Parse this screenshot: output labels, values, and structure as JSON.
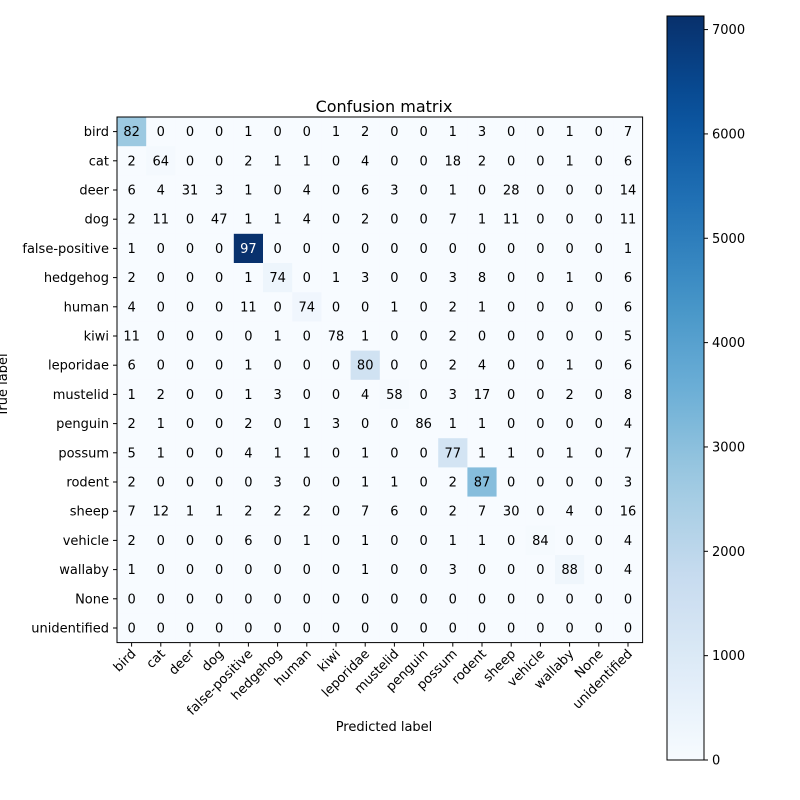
{
  "chart_data": {
    "type": "heatmap",
    "title": "Confusion matrix",
    "xlabel": "Predicted label",
    "ylabel": "True label",
    "labels": [
      "bird",
      "cat",
      "deer",
      "dog",
      "false-positive",
      "hedgehog",
      "human",
      "kiwi",
      "leporidae",
      "mustelid",
      "penguin",
      "possum",
      "rodent",
      "sheep",
      "vehicle",
      "wallaby",
      "None",
      "unidentified"
    ],
    "matrix": [
      [
        82,
        0,
        0,
        0,
        1,
        0,
        0,
        1,
        2,
        0,
        0,
        1,
        3,
        0,
        0,
        1,
        0,
        7
      ],
      [
        2,
        64,
        0,
        0,
        2,
        1,
        1,
        0,
        4,
        0,
        0,
        18,
        2,
        0,
        0,
        1,
        0,
        6
      ],
      [
        6,
        4,
        31,
        3,
        1,
        0,
        4,
        0,
        6,
        3,
        0,
        1,
        0,
        28,
        0,
        0,
        0,
        14
      ],
      [
        2,
        11,
        0,
        47,
        1,
        1,
        4,
        0,
        2,
        0,
        0,
        7,
        1,
        11,
        0,
        0,
        0,
        11
      ],
      [
        1,
        0,
        0,
        0,
        97,
        0,
        0,
        0,
        0,
        0,
        0,
        0,
        0,
        0,
        0,
        0,
        0,
        1
      ],
      [
        2,
        0,
        0,
        0,
        1,
        74,
        0,
        1,
        3,
        0,
        0,
        3,
        8,
        0,
        0,
        1,
        0,
        6
      ],
      [
        4,
        0,
        0,
        0,
        11,
        0,
        74,
        0,
        0,
        1,
        0,
        2,
        1,
        0,
        0,
        0,
        0,
        6
      ],
      [
        11,
        0,
        0,
        0,
        0,
        1,
        0,
        78,
        1,
        0,
        0,
        2,
        0,
        0,
        0,
        0,
        0,
        5
      ],
      [
        6,
        0,
        0,
        0,
        1,
        0,
        0,
        0,
        80,
        0,
        0,
        2,
        4,
        0,
        0,
        1,
        0,
        6
      ],
      [
        1,
        2,
        0,
        0,
        1,
        3,
        0,
        0,
        4,
        58,
        0,
        3,
        17,
        0,
        0,
        2,
        0,
        8
      ],
      [
        2,
        1,
        0,
        0,
        2,
        0,
        1,
        3,
        0,
        0,
        86,
        1,
        1,
        0,
        0,
        0,
        0,
        4
      ],
      [
        5,
        1,
        0,
        0,
        4,
        1,
        1,
        0,
        1,
        0,
        0,
        77,
        1,
        1,
        0,
        1,
        0,
        7
      ],
      [
        2,
        0,
        0,
        0,
        0,
        3,
        0,
        0,
        1,
        1,
        0,
        2,
        87,
        0,
        0,
        0,
        0,
        3
      ],
      [
        7,
        12,
        1,
        1,
        2,
        2,
        2,
        0,
        7,
        6,
        0,
        2,
        7,
        30,
        0,
        4,
        0,
        16
      ],
      [
        2,
        0,
        0,
        0,
        6,
        0,
        1,
        0,
        1,
        0,
        0,
        1,
        1,
        0,
        84,
        0,
        0,
        4
      ],
      [
        1,
        0,
        0,
        0,
        0,
        0,
        0,
        0,
        1,
        0,
        0,
        3,
        0,
        0,
        0,
        88,
        0,
        4
      ],
      [
        0,
        0,
        0,
        0,
        0,
        0,
        0,
        0,
        0,
        0,
        0,
        0,
        0,
        0,
        0,
        0,
        0,
        0
      ],
      [
        0,
        0,
        0,
        0,
        0,
        0,
        0,
        0,
        0,
        0,
        0,
        0,
        0,
        0,
        0,
        0,
        0,
        0
      ]
    ],
    "cell_shading": [
      [
        2700,
        0,
        0,
        0,
        0,
        0,
        0,
        0,
        0,
        0,
        0,
        0,
        0,
        0,
        0,
        0,
        0,
        0
      ],
      [
        0,
        100,
        0,
        0,
        0,
        0,
        0,
        0,
        0,
        0,
        0,
        0,
        0,
        0,
        0,
        0,
        0,
        0
      ],
      [
        0,
        0,
        0,
        0,
        0,
        0,
        0,
        0,
        0,
        0,
        0,
        0,
        0,
        0,
        0,
        0,
        0,
        0
      ],
      [
        0,
        0,
        0,
        0,
        0,
        0,
        0,
        0,
        0,
        0,
        0,
        0,
        0,
        0,
        0,
        0,
        0,
        0
      ],
      [
        0,
        0,
        0,
        0,
        7100,
        0,
        0,
        0,
        0,
        0,
        0,
        0,
        0,
        0,
        0,
        0,
        0,
        0
      ],
      [
        0,
        0,
        0,
        0,
        0,
        350,
        0,
        0,
        0,
        0,
        0,
        0,
        0,
        0,
        0,
        0,
        0,
        0
      ],
      [
        0,
        0,
        0,
        0,
        0,
        0,
        260,
        0,
        0,
        0,
        0,
        0,
        0,
        0,
        0,
        0,
        0,
        0
      ],
      [
        0,
        0,
        0,
        0,
        0,
        0,
        0,
        0,
        0,
        0,
        0,
        0,
        0,
        0,
        0,
        0,
        0,
        0
      ],
      [
        0,
        0,
        0,
        0,
        0,
        0,
        0,
        0,
        1400,
        0,
        0,
        0,
        0,
        0,
        0,
        0,
        0,
        0
      ],
      [
        0,
        0,
        0,
        0,
        0,
        0,
        0,
        0,
        0,
        60,
        0,
        0,
        0,
        0,
        0,
        0,
        0,
        0
      ],
      [
        0,
        0,
        0,
        0,
        0,
        0,
        0,
        0,
        0,
        0,
        0,
        0,
        0,
        0,
        0,
        0,
        0,
        0
      ],
      [
        0,
        0,
        0,
        0,
        0,
        0,
        0,
        0,
        0,
        0,
        0,
        1300,
        0,
        0,
        0,
        0,
        0,
        0
      ],
      [
        0,
        0,
        0,
        0,
        0,
        0,
        0,
        0,
        0,
        0,
        0,
        0,
        3100,
        0,
        0,
        0,
        0,
        0
      ],
      [
        0,
        0,
        0,
        0,
        0,
        0,
        0,
        0,
        0,
        0,
        0,
        0,
        0,
        0,
        0,
        0,
        0,
        0
      ],
      [
        0,
        0,
        0,
        0,
        0,
        0,
        0,
        0,
        0,
        0,
        0,
        0,
        0,
        0,
        80,
        0,
        0,
        0
      ],
      [
        0,
        0,
        0,
        0,
        0,
        0,
        0,
        0,
        0,
        0,
        0,
        0,
        0,
        0,
        0,
        300,
        0,
        0
      ],
      [
        0,
        0,
        0,
        0,
        0,
        0,
        0,
        0,
        0,
        0,
        0,
        0,
        0,
        0,
        0,
        0,
        0,
        0
      ],
      [
        0,
        0,
        0,
        0,
        0,
        0,
        0,
        0,
        0,
        0,
        0,
        0,
        0,
        0,
        0,
        0,
        0,
        0
      ]
    ],
    "colorbar": {
      "range": [
        0,
        7130
      ],
      "ticks": [
        0,
        1000,
        2000,
        3000,
        4000,
        5000,
        6000,
        7000
      ],
      "colormap": "Blues"
    },
    "text_color_dark": "#000000",
    "text_color_light": "#ffffff"
  }
}
